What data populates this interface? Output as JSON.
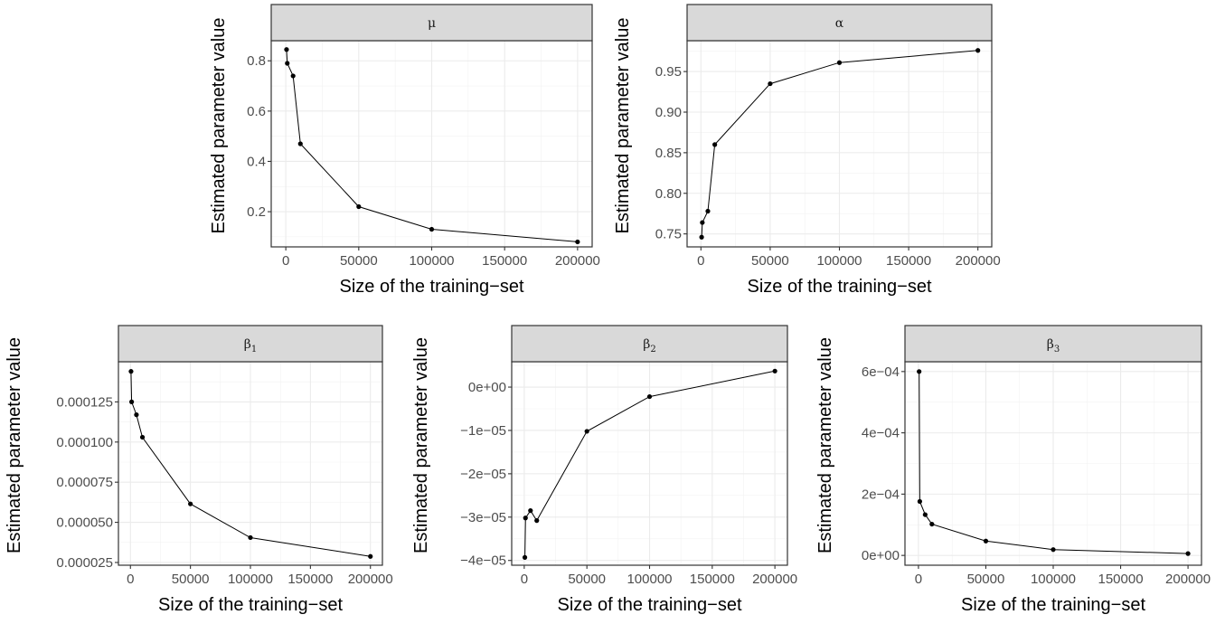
{
  "chart_data": [
    {
      "type": "line",
      "strip_label": "μ",
      "xlabel": "Size of the training−set",
      "ylabel": "Estimated parameter value",
      "xlim": [
        -10000,
        210000
      ],
      "ylim": [
        0.06,
        0.88
      ],
      "x_ticks": [
        0,
        50000,
        100000,
        150000,
        200000
      ],
      "x_tick_labels": [
        "0",
        "50000",
        "100000",
        "150000",
        "200000"
      ],
      "y_ticks": [
        0.2,
        0.4,
        0.6,
        0.8
      ],
      "y_tick_labels": [
        "0.2",
        "0.4",
        "0.6",
        "0.8"
      ],
      "grid": true,
      "x": [
        500,
        1000,
        5000,
        10000,
        50000,
        100000,
        200000
      ],
      "y": [
        0.845,
        0.79,
        0.74,
        0.47,
        0.22,
        0.13,
        0.08
      ]
    },
    {
      "type": "line",
      "strip_label": "α",
      "xlabel": "Size of the training−set",
      "ylabel": "Estimated parameter value",
      "xlim": [
        -10000,
        210000
      ],
      "ylim": [
        0.734,
        0.988
      ],
      "x_ticks": [
        0,
        50000,
        100000,
        150000,
        200000
      ],
      "x_tick_labels": [
        "0",
        "50000",
        "100000",
        "150000",
        "200000"
      ],
      "y_ticks": [
        0.75,
        0.8,
        0.85,
        0.9,
        0.95
      ],
      "y_tick_labels": [
        "0.75",
        "0.80",
        "0.85",
        "0.90",
        "0.95"
      ],
      "grid": true,
      "x": [
        500,
        1000,
        5000,
        10000,
        50000,
        100000,
        200000
      ],
      "y": [
        0.746,
        0.764,
        0.778,
        0.86,
        0.935,
        0.961,
        0.976
      ]
    },
    {
      "type": "line",
      "strip_label": "β",
      "strip_sub": "1",
      "xlabel": "Size of the training−set",
      "ylabel": "Estimated parameter value",
      "xlim": [
        -10000,
        210000
      ],
      "ylim": [
        2.33e-05,
        0.00015
      ],
      "x_ticks": [
        0,
        50000,
        100000,
        150000,
        200000
      ],
      "x_tick_labels": [
        "0",
        "50000",
        "100000",
        "150000",
        "200000"
      ],
      "y_ticks": [
        2.5e-05,
        5e-05,
        7.5e-05,
        0.0001,
        0.000125
      ],
      "y_tick_labels": [
        "0.000025",
        "0.000050",
        "0.000075",
        "0.000100",
        "0.000125"
      ],
      "grid": true,
      "x": [
        500,
        1000,
        5000,
        10000,
        50000,
        100000,
        200000
      ],
      "y": [
        0.000144,
        0.000125,
        0.000117,
        0.000103,
        6.15e-05,
        4.05e-05,
        2.88e-05
      ]
    },
    {
      "type": "line",
      "strip_label": "β",
      "strip_sub": "2",
      "xlabel": "Size of the training−set",
      "ylabel": "Estimated parameter value",
      "xlim": [
        -10000,
        210000
      ],
      "ylim": [
        -4.11e-05,
        5.85e-06
      ],
      "x_ticks": [
        0,
        50000,
        100000,
        150000,
        200000
      ],
      "x_tick_labels": [
        "0",
        "50000",
        "100000",
        "150000",
        "200000"
      ],
      "y_ticks": [
        -4e-05,
        -3e-05,
        -2e-05,
        -1e-05,
        0
      ],
      "y_tick_labels": [
        "−4e−05",
        "−3e−05",
        "−2e−05",
        "−1e−05",
        "0e+00"
      ],
      "grid": true,
      "x": [
        500,
        1000,
        5000,
        10000,
        50000,
        100000,
        200000
      ],
      "y": [
        -3.93e-05,
        -3.02e-05,
        -2.85e-05,
        -3.08e-05,
        -1.02e-05,
        -2.2e-06,
        3.7e-06
      ]
    },
    {
      "type": "line",
      "strip_label": "β",
      "strip_sub": "3",
      "xlabel": "Size of the training−set",
      "ylabel": "Estimated parameter value",
      "xlim": [
        -10000,
        210000
      ],
      "ylim": [
        -3.2e-05,
        0.000632
      ],
      "x_ticks": [
        0,
        50000,
        100000,
        150000,
        200000
      ],
      "x_tick_labels": [
        "0",
        "50000",
        "100000",
        "150000",
        "200000"
      ],
      "y_ticks": [
        0,
        0.0002,
        0.0004,
        0.0006
      ],
      "y_tick_labels": [
        "0e+00",
        "2e−04",
        "4e−04",
        "6e−04"
      ],
      "grid": true,
      "x": [
        500,
        1000,
        5000,
        10000,
        50000,
        100000,
        200000
      ],
      "y": [
        0.0006,
        0.000176,
        0.000133,
        0.000102,
        4.7e-05,
        1.9e-05,
        6e-06
      ]
    }
  ]
}
